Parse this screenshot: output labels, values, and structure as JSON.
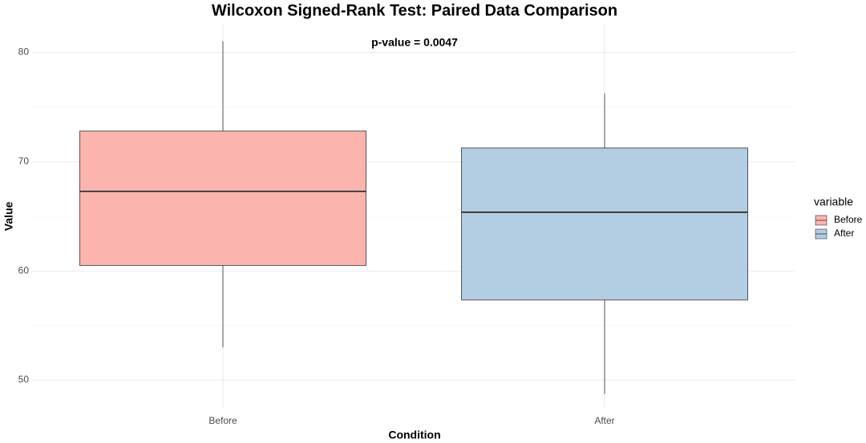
{
  "chart_data": {
    "type": "box",
    "title": "Wilcoxon Signed-Rank Test: Paired Data Comparison",
    "annotation": "p-value = 0.0047",
    "x_label": "Condition",
    "y_label": "Value",
    "categories": [
      "Before",
      "After"
    ],
    "legend_title": "variable",
    "series": [
      {
        "name": "Before",
        "color": "#FBB4AE",
        "values": {
          "whislo": 53.0,
          "q1": 60.5,
          "median": 67.28,
          "q3": 72.8,
          "whishi": 81.03
        }
      },
      {
        "name": "After",
        "color": "#B3CDE3",
        "values": {
          "whislo": 48.75,
          "q1": 57.35,
          "median": 65.37,
          "q3": 71.25,
          "whishi": 76.25
        }
      }
    ],
    "ylim": [
      47.4,
      82.6
    ],
    "yticks": [
      50,
      60,
      70,
      80
    ],
    "grid": true,
    "legend": "right"
  }
}
